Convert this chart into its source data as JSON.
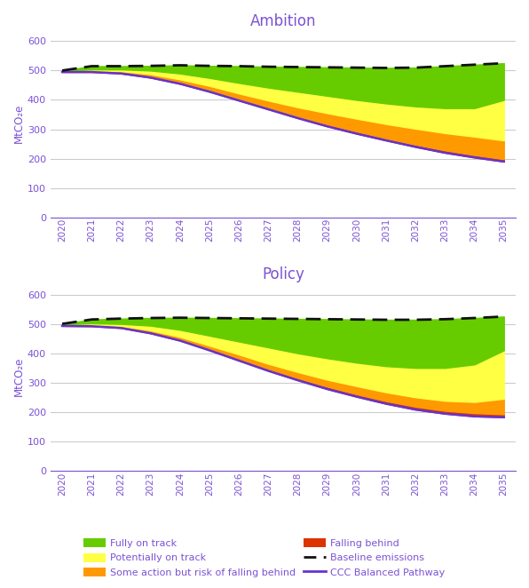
{
  "years": [
    2020,
    2021,
    2022,
    2023,
    2024,
    2025,
    2026,
    2027,
    2028,
    2029,
    2030,
    2031,
    2032,
    2033,
    2034,
    2035
  ],
  "title1": "Ambition",
  "title2": "Policy",
  "ylabel": "MtCO₂e",
  "ylim": [
    0,
    640
  ],
  "yticks": [
    0,
    100,
    200,
    300,
    400,
    500,
    600
  ],
  "text_color": "#7B52D4",
  "grid_color": "#cccccc",
  "baseline_ambition": [
    500,
    515,
    515,
    516,
    518,
    516,
    515,
    513,
    512,
    511,
    510,
    509,
    510,
    515,
    520,
    525
  ],
  "ccc_ambition": [
    495,
    495,
    490,
    476,
    455,
    428,
    398,
    368,
    338,
    310,
    285,
    262,
    240,
    220,
    204,
    190
  ],
  "top_falling_amb": [
    496,
    497,
    492,
    479,
    458,
    432,
    402,
    372,
    343,
    316,
    292,
    268,
    247,
    228,
    212,
    198
  ],
  "top_some_amb": [
    497,
    500,
    498,
    488,
    470,
    448,
    422,
    398,
    375,
    355,
    336,
    318,
    302,
    287,
    275,
    262
  ],
  "top_pot_amb": [
    498,
    504,
    504,
    500,
    490,
    475,
    458,
    442,
    428,
    414,
    400,
    388,
    378,
    372,
    372,
    400
  ],
  "top_fully_amb": [
    500,
    515,
    515,
    516,
    518,
    516,
    515,
    513,
    512,
    511,
    510,
    509,
    510,
    515,
    520,
    525
  ],
  "baseline_policy": [
    500,
    515,
    518,
    520,
    521,
    520,
    519,
    518,
    517,
    516,
    515,
    514,
    514,
    516,
    520,
    525
  ],
  "ccc_policy": [
    493,
    492,
    486,
    468,
    443,
    410,
    375,
    340,
    308,
    278,
    252,
    228,
    208,
    194,
    185,
    182
  ],
  "top_falling_pol": [
    494,
    494,
    489,
    472,
    447,
    415,
    380,
    346,
    315,
    286,
    260,
    237,
    218,
    204,
    196,
    192
  ],
  "top_some_pol": [
    496,
    497,
    493,
    478,
    456,
    426,
    396,
    364,
    336,
    310,
    288,
    267,
    250,
    238,
    234,
    245
  ],
  "top_pot_pol": [
    498,
    502,
    500,
    494,
    480,
    460,
    440,
    420,
    400,
    383,
    368,
    356,
    350,
    350,
    362,
    410
  ],
  "top_fully_pol": [
    500,
    515,
    518,
    520,
    521,
    520,
    519,
    518,
    517,
    516,
    515,
    514,
    514,
    516,
    520,
    525
  ],
  "color_fully": "#66cc00",
  "color_pot": "#ffff44",
  "color_some": "#ff9900",
  "color_falling": "#dd3300",
  "color_ccc": "#6633cc",
  "color_baseline": "#111111",
  "legend_labels": [
    "Fully on track",
    "Potentially on track",
    "Some action but risk of falling behind",
    "Falling behind",
    "Baseline emissions",
    "CCC Balanced Pathway"
  ]
}
